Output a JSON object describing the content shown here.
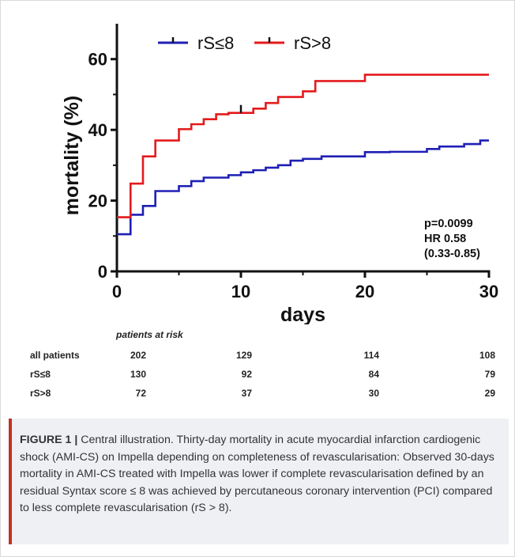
{
  "chart_data": {
    "type": "line",
    "subtype": "kaplan-meier step",
    "xlabel": "days",
    "ylabel": "mortality (%)",
    "xlim": [
      0,
      30
    ],
    "ylim": [
      0,
      70
    ],
    "xticks": [
      0,
      10,
      20,
      30
    ],
    "yticks": [
      0,
      20,
      40,
      60
    ],
    "legend_position": "top",
    "series": [
      {
        "name": "rS≤8",
        "color": "#1f1fb4",
        "x": [
          0,
          1.1,
          2.1,
          3.1,
          5,
          6,
          7,
          9,
          10,
          11,
          12,
          13,
          14,
          15,
          16.5,
          20,
          22,
          25,
          26,
          28,
          29.3,
          30
        ],
        "y": [
          10.5,
          16,
          18.5,
          22.7,
          24.1,
          25.5,
          26.5,
          27.2,
          28,
          28.6,
          29.3,
          30,
          31.3,
          31.8,
          32.5,
          33.7,
          33.8,
          34.6,
          35.3,
          36,
          37,
          37
        ]
      },
      {
        "name": "rS>8",
        "color": "#e41a1c",
        "x": [
          0,
          1.1,
          2.1,
          3.1,
          5,
          6,
          7,
          8,
          9,
          11,
          12,
          13,
          15,
          16,
          20,
          30
        ],
        "y": [
          15.3,
          24.8,
          32.5,
          37,
          40.2,
          41.6,
          43,
          44.4,
          44.8,
          46,
          47.6,
          49.3,
          50.9,
          53.8,
          55.6,
          55.6
        ]
      }
    ],
    "censor_marks": [
      {
        "series": "rS>8",
        "x": 10,
        "y": 44.8
      }
    ],
    "annotation": [
      "p=0.0099",
      "HR 0.58",
      "(0.33-0.85)"
    ]
  },
  "risk_table": {
    "title": "patients  at risk",
    "rows": [
      {
        "label": "all patients",
        "values": [
          "202",
          "129",
          "114",
          "108"
        ]
      },
      {
        "label": "rS≤8",
        "values": [
          "130",
          "92",
          "84",
          "79"
        ]
      },
      {
        "label": "rS>8",
        "values": [
          "72",
          "37",
          "30",
          "29"
        ]
      }
    ]
  },
  "caption": {
    "label": "FIGURE 1 |",
    "text": " Central illustration. Thirty-day mortality in acute myocardial infarction cardiogenic shock (AMI-CS) on Impella depending on completeness of revascularisation: Observed 30-days mortality in AMI-CS treated with Impella was lower if complete revascularisation defined by an residual Syntax score ≤ 8 was achieved by percutaneous coronary intervention (PCI) compared to less complete revascularisation (rS > 8).",
    "accent_color": "#c72f25"
  }
}
